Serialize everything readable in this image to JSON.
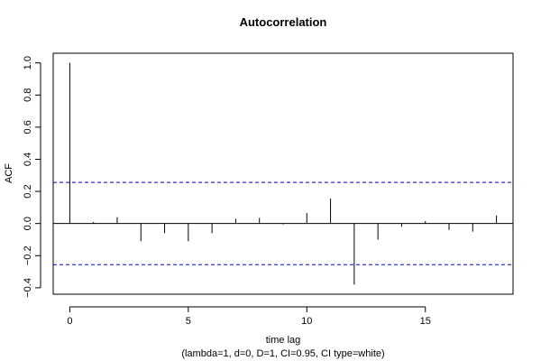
{
  "chart_data": {
    "type": "bar",
    "title": "Autocorrelation",
    "xlabel": "time lag",
    "subtitle": "(lambda=1, d=0, D=1, CI=0.95, CI type=white)",
    "ylabel": "ACF",
    "xlim": [
      -0.7,
      18.7
    ],
    "ylim": [
      -0.44,
      1.06
    ],
    "x_ticks": [
      0,
      5,
      10,
      15
    ],
    "x_tick_labels": [
      "0",
      "5",
      "10",
      "15"
    ],
    "y_ticks": [
      -0.4,
      -0.2,
      0.0,
      0.2,
      0.4,
      0.6,
      0.8,
      1.0
    ],
    "y_tick_labels": [
      "−0.4",
      "−0.2",
      "0.0",
      "0.2",
      "0.4",
      "0.6",
      "0.8",
      "1.0"
    ],
    "confidence_band": [
      0.256,
      -0.256
    ],
    "lags": [
      0,
      1,
      2,
      3,
      4,
      5,
      6,
      7,
      8,
      9,
      10,
      11,
      12,
      13,
      14,
      15,
      16,
      17,
      18
    ],
    "values": [
      1.0,
      0.01,
      0.04,
      -0.11,
      -0.06,
      -0.11,
      -0.06,
      0.03,
      0.035,
      -0.005,
      0.065,
      0.155,
      -0.38,
      -0.1,
      -0.02,
      0.015,
      -0.04,
      -0.05,
      0.05
    ],
    "colors": {
      "spike": "#000000",
      "ci": "#0000cc"
    }
  }
}
